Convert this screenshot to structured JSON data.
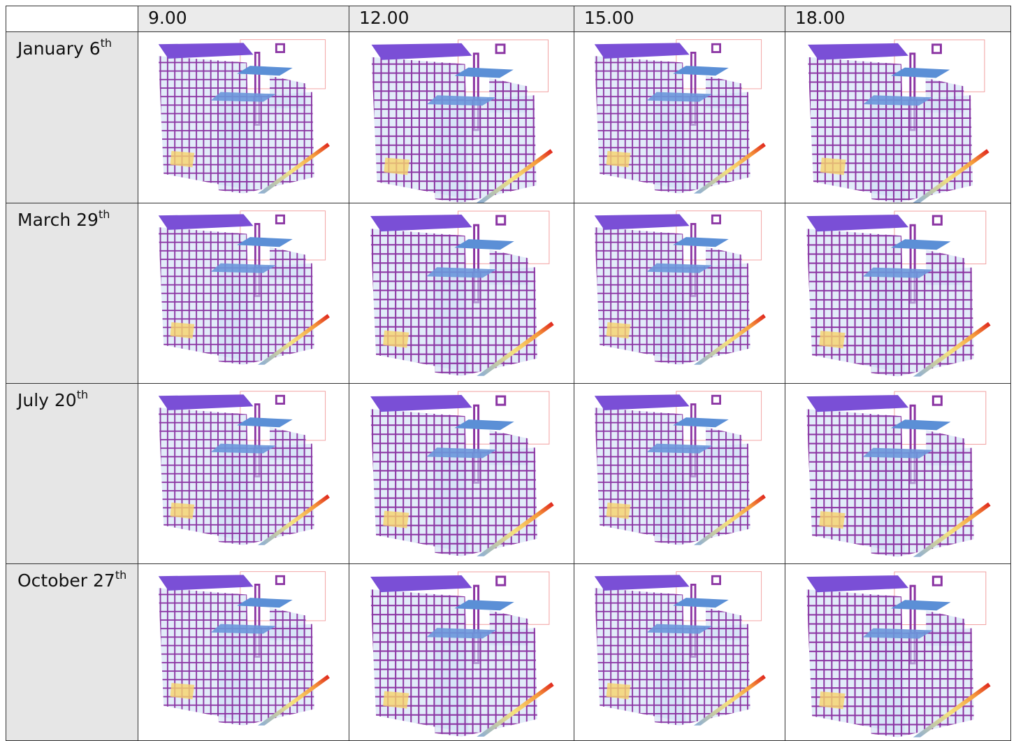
{
  "table": {
    "header": [
      "9.00",
      "12.00",
      "15.00",
      "18.00"
    ],
    "rows": [
      {
        "text": "January 6",
        "sup": "th"
      },
      {
        "text": "March 29",
        "sup": "th"
      },
      {
        "text": "July 20",
        "sup": "th"
      },
      {
        "text": "October 27",
        "sup": "th"
      }
    ]
  }
}
